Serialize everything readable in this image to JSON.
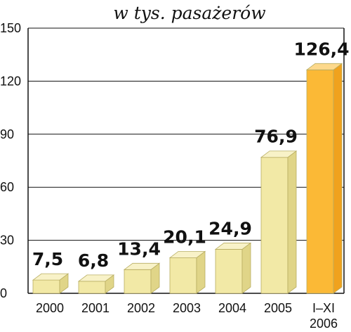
{
  "chart_data": {
    "type": "bar",
    "title": "w tys. pasażerów",
    "categories": [
      [
        "2000"
      ],
      [
        "2001"
      ],
      [
        "2002"
      ],
      [
        "2003"
      ],
      [
        "2004"
      ],
      [
        "2005"
      ],
      [
        "I–XI",
        "2006"
      ]
    ],
    "values": [
      7.5,
      6.8,
      13.4,
      20.1,
      24.9,
      76.9,
      126.4
    ],
    "value_labels": [
      "7,5",
      "6,8",
      "13,4",
      "20,1",
      "24,9",
      "76,9",
      "126,4"
    ],
    "yticks": [
      0,
      30,
      60,
      90,
      120,
      150
    ],
    "ylim": [
      0,
      150
    ],
    "grid": true,
    "colors": {
      "bar_front": "#f2e9a6",
      "bar_top": "#f8f2c8",
      "bar_side": "#e0d588",
      "highlight_front": "#fbb936",
      "highlight_top": "#fdd98c",
      "highlight_side": "#f0a21e",
      "grid": "#111111",
      "text": "#111111"
    }
  }
}
